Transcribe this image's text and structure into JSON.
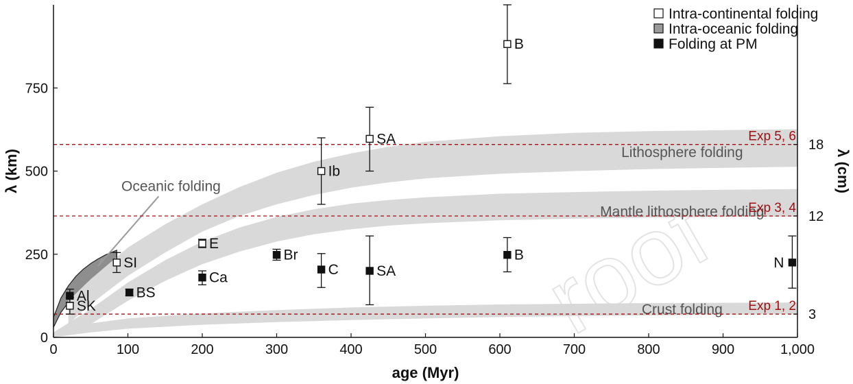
{
  "chart_data": {
    "type": "scatter",
    "xlabel": "age (Myr)",
    "ylabel": "λ (km)",
    "ylabel_right": "λ (cm)",
    "xlim": [
      0,
      1000
    ],
    "ylim": [
      0,
      1000
    ],
    "x_ticks": [
      {
        "value": 0,
        "label": "0"
      },
      {
        "value": 100,
        "label": "100"
      },
      {
        "value": 200,
        "label": "200"
      },
      {
        "value": 300,
        "label": "300"
      },
      {
        "value": 400,
        "label": "400"
      },
      {
        "value": 500,
        "label": "500"
      },
      {
        "value": 600,
        "label": "600"
      },
      {
        "value": 700,
        "label": "700"
      },
      {
        "value": 800,
        "label": "800"
      },
      {
        "value": 900,
        "label": "900"
      },
      {
        "value": 1000,
        "label": "1,000"
      }
    ],
    "y_ticks": [
      {
        "value": 0,
        "label": "0"
      },
      {
        "value": 250,
        "label": "250"
      },
      {
        "value": 500,
        "label": "500"
      },
      {
        "value": 750,
        "label": "750"
      }
    ],
    "y_ticks_right": [
      {
        "value": 70,
        "label": "3"
      },
      {
        "value": 365,
        "label": "12"
      },
      {
        "value": 580,
        "label": "18"
      }
    ],
    "legend": {
      "placement": "top-right",
      "entries": [
        {
          "label": "Intra-continental folding",
          "style": "open"
        },
        {
          "label": "Intra-oceanic folding",
          "style": "gray"
        },
        {
          "label": "Folding at PM",
          "style": "filled"
        }
      ]
    },
    "series": [
      {
        "name": "Intra-continental folding",
        "style": "open",
        "points": [
          {
            "label": "SK",
            "x": 22,
            "y": 95,
            "err_low": 70,
            "err_high": 120
          },
          {
            "label": "SI",
            "x": 85,
            "y": 225,
            "err_low": 195,
            "err_high": 255
          },
          {
            "label": "E",
            "x": 200,
            "y": 282,
            "err_low": 270,
            "err_high": 295
          },
          {
            "label": "Ib",
            "x": 360,
            "y": 500,
            "err_low": 400,
            "err_high": 600
          },
          {
            "label": "SA",
            "x": 425,
            "y": 597,
            "err_low": 500,
            "err_high": 692
          },
          {
            "label": "B",
            "x": 610,
            "y": 882,
            "err_low": 763,
            "err_high": 1000
          }
        ]
      },
      {
        "name": "Folding at PM",
        "style": "filled",
        "points": [
          {
            "label": "Al",
            "x": 22,
            "y": 125,
            "err_low": 105,
            "err_high": 145
          },
          {
            "label": "BS",
            "x": 102,
            "y": 135,
            "err_low": 125,
            "err_high": 145
          },
          {
            "label": "Ca",
            "x": 200,
            "y": 180,
            "err_low": 158,
            "err_high": 200
          },
          {
            "label": "Br",
            "x": 300,
            "y": 248,
            "err_low": 232,
            "err_high": 265
          },
          {
            "label": "C",
            "x": 360,
            "y": 204,
            "err_low": 150,
            "err_high": 252
          },
          {
            "label": "SA",
            "x": 425,
            "y": 200,
            "err_low": 98,
            "err_high": 305
          },
          {
            "label": "B",
            "x": 610,
            "y": 248,
            "err_low": 197,
            "err_high": 300
          },
          {
            "label": "N",
            "x": 993,
            "y": 225,
            "err_low": 148,
            "err_high": 305
          }
        ]
      }
    ],
    "bands": [
      {
        "label": "Oceanic folding",
        "fill": "#8e8e8e",
        "x": [
          0,
          10,
          20,
          30,
          40,
          50,
          60,
          70,
          85
        ],
        "upper": [
          60,
          118,
          155,
          183,
          205,
          222,
          236,
          248,
          262
        ],
        "lower": [
          30,
          75,
          105,
          127,
          145,
          158,
          168,
          175,
          183
        ]
      },
      {
        "label": "Lithosphere folding",
        "fill": "#d9d9d9",
        "x": [
          20,
          50,
          100,
          150,
          200,
          250,
          300,
          350,
          400,
          450,
          500,
          600,
          700,
          800,
          900,
          1000
        ],
        "upper": [
          110,
          175,
          270,
          340,
          400,
          452,
          495,
          528,
          553,
          573,
          588,
          605,
          615,
          620,
          623,
          626
        ],
        "lower": [
          40,
          100,
          185,
          255,
          318,
          365,
          400,
          428,
          450,
          466,
          478,
          492,
          500,
          506,
          510,
          513
        ]
      },
      {
        "label": "Mantle lithosphere folding",
        "fill": "#d9d9d9",
        "x": [
          0,
          50,
          100,
          150,
          200,
          250,
          300,
          350,
          400,
          450,
          500,
          600,
          700,
          800,
          900,
          1000
        ],
        "upper": [
          15,
          85,
          165,
          232,
          288,
          330,
          362,
          385,
          402,
          413,
          421,
          432,
          437,
          441,
          444,
          446
        ],
        "lower": [
          0,
          40,
          110,
          170,
          220,
          258,
          288,
          310,
          325,
          336,
          343,
          352,
          357,
          360,
          362,
          363
        ]
      },
      {
        "label": "Crust folding",
        "fill": "#d9d9d9",
        "x": [
          0,
          50,
          100,
          200,
          300,
          400,
          500,
          600,
          700,
          800,
          900,
          1000
        ],
        "upper": [
          12,
          42,
          57,
          72,
          82,
          90,
          95,
          99,
          101,
          103,
          104,
          105
        ],
        "lower": [
          0,
          15,
          26,
          38,
          46,
          52,
          57,
          61,
          64,
          66,
          68,
          70
        ]
      }
    ],
    "annotations": [
      {
        "label": "Oceanic folding",
        "x": 158,
        "y": 455,
        "arrow_to_x": 60,
        "arrow_to_y": 215
      }
    ],
    "reference_lines": [
      {
        "label": "Exp 5, 6",
        "y": 580
      },
      {
        "label": "Exp 3, 4",
        "y": 365
      },
      {
        "label": "Exp 1, 2",
        "y": 70
      }
    ],
    "colors": {
      "band_gray": "#d9d9d9",
      "oceanic_band": "#8e8e8e",
      "reference_line": "#a01010",
      "marker": "#111111"
    }
  },
  "watermark": "roof"
}
